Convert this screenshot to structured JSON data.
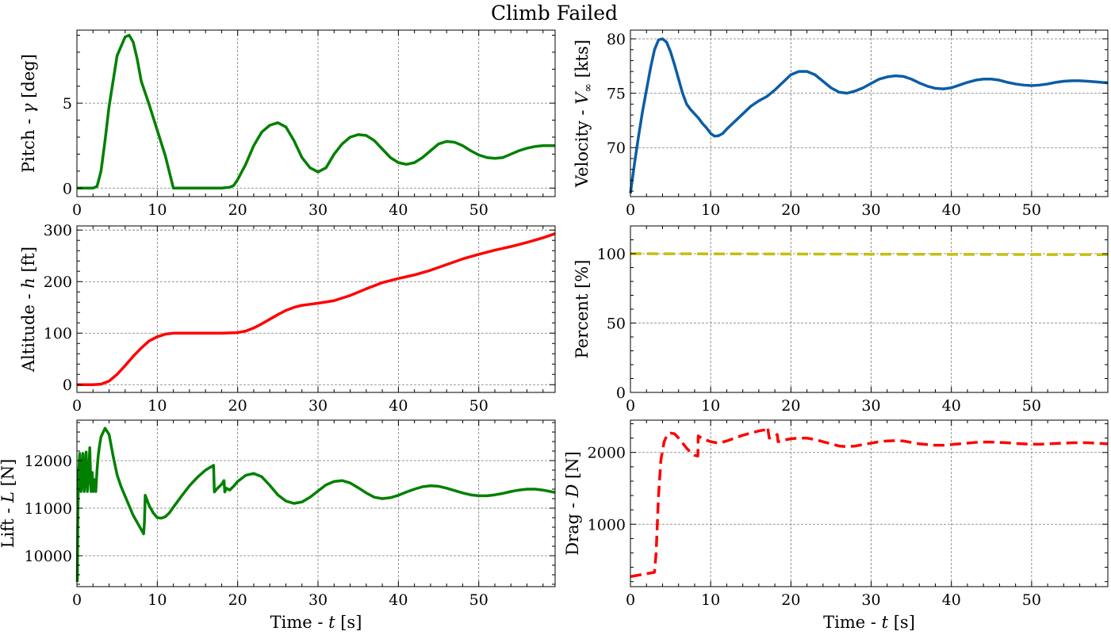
{
  "figure": {
    "title": "Climb Failed"
  },
  "chart_data": [
    {
      "id": "pitch",
      "type": "line",
      "ylabel_prefix": "Pitch - ",
      "ylabel_sym": "γ",
      "ylabel_unit": " [deg]",
      "xlabel": "",
      "xlim": [
        0,
        59.5
      ],
      "ylim": [
        -0.5,
        9.3
      ],
      "xticks": [
        "0",
        "10",
        "20",
        "30",
        "40",
        "50"
      ],
      "yticks": [
        "0",
        "5"
      ],
      "ytick_values": [
        0,
        5
      ],
      "series": [
        {
          "color": "#008000",
          "style": "solid",
          "x": [
            0,
            1,
            2,
            2.5,
            3,
            3.5,
            4,
            5,
            6,
            6.5,
            7,
            7.5,
            8,
            9,
            10,
            11,
            12,
            14,
            16,
            18,
            19,
            19.5,
            20,
            21,
            22,
            23,
            24,
            25,
            26,
            27,
            28,
            29,
            30,
            31,
            32,
            33,
            34,
            35,
            36,
            37,
            38,
            39,
            40,
            41,
            42,
            43,
            44,
            45,
            46,
            47,
            48,
            49,
            50,
            51,
            52,
            53,
            54,
            55,
            56,
            57,
            58,
            59.5
          ],
          "y": [
            0,
            0,
            0,
            0.1,
            1.0,
            2.8,
            4.8,
            7.8,
            8.9,
            9.0,
            8.6,
            7.6,
            6.3,
            4.9,
            3.4,
            1.9,
            0.0,
            0.0,
            0.0,
            0.0,
            0.05,
            0.15,
            0.5,
            1.4,
            2.5,
            3.3,
            3.7,
            3.85,
            3.6,
            2.8,
            1.8,
            1.2,
            0.95,
            1.2,
            2.0,
            2.6,
            3.0,
            3.15,
            3.1,
            2.8,
            2.3,
            1.8,
            1.5,
            1.4,
            1.5,
            1.8,
            2.2,
            2.6,
            2.75,
            2.7,
            2.5,
            2.2,
            1.95,
            1.8,
            1.75,
            1.8,
            2.0,
            2.2,
            2.35,
            2.45,
            2.5,
            2.5
          ]
        }
      ]
    },
    {
      "id": "velocity",
      "type": "line",
      "ylabel_prefix": "Velocity - ",
      "ylabel_sym": "V",
      "ylabel_sub": "∞",
      "ylabel_unit": " [kts]",
      "xlabel": "",
      "xlim": [
        0,
        59.5
      ],
      "ylim": [
        65.5,
        80.8
      ],
      "xticks": [
        "0",
        "10",
        "20",
        "30",
        "40",
        "50"
      ],
      "yticks": [
        "70",
        "75",
        "80"
      ],
      "ytick_values": [
        70,
        75,
        80
      ],
      "series": [
        {
          "color": "#0c5da5",
          "style": "solid",
          "x": [
            0,
            0.5,
            1,
            1.5,
            2,
            2.5,
            3,
            3.5,
            4,
            4.5,
            5,
            5.5,
            6,
            6.5,
            7,
            7.5,
            8,
            8.5,
            9,
            9.5,
            10,
            10.5,
            11,
            11.5,
            12,
            13,
            14,
            15,
            16,
            17,
            18,
            19,
            20,
            21,
            22,
            23,
            24,
            25,
            26,
            27,
            28,
            29,
            30,
            31,
            32,
            33,
            34,
            35,
            36,
            37,
            38,
            39,
            40,
            41,
            42,
            43,
            44,
            45,
            46,
            47,
            48,
            49,
            50,
            51,
            52,
            53,
            54,
            55,
            56,
            57,
            58,
            59.5
          ],
          "y": [
            65.8,
            68.5,
            71.0,
            73.3,
            75.3,
            77.3,
            79.0,
            79.9,
            80.0,
            79.7,
            78.8,
            77.6,
            76.3,
            75.0,
            74.0,
            73.5,
            73.1,
            72.7,
            72.2,
            71.8,
            71.3,
            71.05,
            71.1,
            71.3,
            71.7,
            72.4,
            73.1,
            73.8,
            74.3,
            74.7,
            75.3,
            76.0,
            76.7,
            77.0,
            77.0,
            76.7,
            76.1,
            75.5,
            75.1,
            75.0,
            75.2,
            75.5,
            75.9,
            76.3,
            76.5,
            76.6,
            76.55,
            76.3,
            75.95,
            75.65,
            75.45,
            75.4,
            75.5,
            75.75,
            76.0,
            76.2,
            76.3,
            76.3,
            76.2,
            76.0,
            75.85,
            75.75,
            75.7,
            75.75,
            75.85,
            76.0,
            76.1,
            76.15,
            76.15,
            76.1,
            76.05,
            75.95
          ]
        }
      ]
    },
    {
      "id": "altitude",
      "type": "line",
      "ylabel_prefix": "Altitude - ",
      "ylabel_sym": "h",
      "ylabel_unit": " [ft]",
      "xlabel": "",
      "xlim": [
        0,
        59.5
      ],
      "ylim": [
        -15,
        308
      ],
      "xticks": [
        "0",
        "10",
        "20",
        "30",
        "40",
        "50"
      ],
      "yticks": [
        "0",
        "100",
        "200",
        "300"
      ],
      "ytick_values": [
        0,
        100,
        200,
        300
      ],
      "series": [
        {
          "color": "#ff0000",
          "style": "solid",
          "x": [
            0,
            2,
            3,
            4,
            5,
            6,
            7,
            8,
            9,
            10,
            11,
            12,
            14,
            16,
            18,
            20,
            21,
            22,
            23,
            24,
            25,
            26,
            27,
            28,
            29,
            30,
            32,
            34,
            36,
            38,
            40,
            42,
            44,
            46,
            48,
            50,
            52,
            54,
            56,
            58,
            59.5
          ],
          "y": [
            0,
            0,
            1,
            7,
            20,
            37,
            55,
            71,
            85,
            93,
            98,
            100,
            100,
            100,
            100,
            101,
            104,
            110,
            118,
            127,
            136,
            144,
            150,
            154,
            156,
            158,
            163,
            173,
            186,
            198,
            206,
            213,
            222,
            233,
            244,
            253,
            261,
            268,
            276,
            285,
            293
          ]
        }
      ]
    },
    {
      "id": "percent",
      "type": "line",
      "ylabel_prefix": "Percent [%]",
      "ylabel_sym": "",
      "ylabel_unit": "",
      "xlabel": "",
      "xlim": [
        0,
        59.5
      ],
      "ylim": [
        0,
        120
      ],
      "xticks": [
        "0",
        "10",
        "20",
        "30",
        "40",
        "50"
      ],
      "yticks": [
        "0",
        "50",
        "100"
      ],
      "ytick_values": [
        0,
        50,
        100
      ],
      "series": [
        {
          "color": "#c5bf0e",
          "style": "dashed",
          "x": [
            0,
            59.5
          ],
          "y": [
            100,
            99.3
          ]
        }
      ]
    },
    {
      "id": "lift",
      "type": "line",
      "ylabel_prefix": "Lift - ",
      "ylabel_sym": "L",
      "ylabel_unit": " [N]",
      "xlabel_prefix": "Time - ",
      "xlabel_sym": "t",
      "xlabel_unit": " [s]",
      "xlim": [
        0,
        59.5
      ],
      "ylim": [
        9350,
        12850
      ],
      "xticks": [
        "0",
        "10",
        "20",
        "30",
        "40",
        "50"
      ],
      "yticks": [
        "10000",
        "11000",
        "12000"
      ],
      "ytick_values": [
        10000,
        11000,
        12000
      ],
      "series": [
        {
          "color": "#008000",
          "style": "solid",
          "x": [
            0.05,
            0.12,
            0.2,
            0.35,
            0.5,
            0.6,
            0.75,
            0.9,
            1.0,
            1.15,
            1.3,
            1.45,
            1.6,
            1.75,
            1.9,
            2.05,
            2.2,
            2.35,
            2.5,
            2.65,
            2.8,
            3.0,
            3.5,
            4.0,
            4.5,
            5.0,
            5.5,
            6.0,
            6.5,
            7.0,
            7.5,
            8.0,
            8.3,
            8.4,
            8.5,
            9.0,
            9.5,
            10,
            10.5,
            11,
            11.5,
            12,
            13,
            14,
            15,
            16,
            17,
            17.1,
            17.5,
            18.0,
            18.3,
            18.4,
            18.6,
            19,
            19.5,
            20,
            21,
            22,
            23,
            24,
            25,
            26,
            27,
            28,
            29,
            30,
            31,
            32,
            33,
            34,
            35,
            36,
            37,
            38,
            39,
            40,
            41,
            42,
            43,
            44,
            45,
            46,
            47,
            48,
            49,
            50,
            51,
            52,
            53,
            54,
            55,
            56,
            57,
            58,
            59.5
          ],
          "y": [
            9450,
            10900,
            11700,
            12150,
            11350,
            11500,
            12150,
            11350,
            11600,
            12180,
            11350,
            11700,
            12270,
            11350,
            11750,
            11350,
            11600,
            11350,
            11800,
            12100,
            12300,
            12500,
            12680,
            12550,
            12100,
            11700,
            11450,
            11250,
            11050,
            10850,
            10700,
            10550,
            10460,
            10700,
            11270,
            11050,
            10900,
            10800,
            10790,
            10820,
            10900,
            11020,
            11250,
            11470,
            11650,
            11800,
            11900,
            11340,
            11420,
            11500,
            11580,
            11340,
            11420,
            11380,
            11460,
            11560,
            11690,
            11730,
            11660,
            11480,
            11280,
            11150,
            11100,
            11130,
            11230,
            11360,
            11490,
            11560,
            11580,
            11530,
            11430,
            11320,
            11230,
            11200,
            11220,
            11270,
            11340,
            11400,
            11450,
            11470,
            11460,
            11420,
            11370,
            11320,
            11280,
            11260,
            11260,
            11280,
            11310,
            11350,
            11380,
            11400,
            11400,
            11380,
            11330
          ]
        }
      ]
    },
    {
      "id": "drag",
      "type": "line",
      "ylabel_prefix": "Drag - ",
      "ylabel_sym": "D",
      "ylabel_unit": " [N]",
      "xlabel_prefix": "Time - ",
      "xlabel_sym": "t",
      "xlabel_unit": " [s]",
      "xlim": [
        0,
        59.5
      ],
      "ylim": [
        130,
        2450
      ],
      "xticks": [
        "0",
        "10",
        "20",
        "30",
        "40",
        "50"
      ],
      "yticks": [
        "1000",
        "2000"
      ],
      "ytick_values": [
        1000,
        2000
      ],
      "series": [
        {
          "color": "#ff0000",
          "style": "dashed",
          "x": [
            0,
            1,
            2,
            3,
            3.2,
            3.5,
            3.8,
            4.2,
            4.6,
            5,
            5.5,
            6,
            6.5,
            7,
            7.5,
            8,
            8.4,
            8.45,
            9,
            10,
            11,
            12,
            13,
            14,
            15,
            16,
            17,
            17.1,
            17.3,
            18,
            18.3,
            18.4,
            19,
            20,
            21,
            22,
            23,
            24,
            25,
            26,
            27,
            28,
            29,
            30,
            31,
            32,
            33,
            34,
            35,
            36,
            37,
            38,
            39,
            40,
            41,
            42,
            43,
            44,
            45,
            46,
            47,
            48,
            49,
            50,
            51,
            52,
            53,
            54,
            55,
            56,
            57,
            58,
            59.5
          ],
          "y": [
            270,
            290,
            310,
            330,
            600,
            1400,
            1900,
            2150,
            2250,
            2270,
            2260,
            2200,
            2130,
            2060,
            2000,
            1960,
            1950,
            2230,
            2190,
            2150,
            2130,
            2160,
            2200,
            2240,
            2270,
            2300,
            2320,
            2350,
            2200,
            2220,
            2250,
            2150,
            2170,
            2190,
            2200,
            2200,
            2180,
            2150,
            2120,
            2090,
            2080,
            2090,
            2110,
            2130,
            2150,
            2160,
            2165,
            2160,
            2140,
            2120,
            2110,
            2100,
            2100,
            2110,
            2120,
            2130,
            2140,
            2145,
            2145,
            2140,
            2135,
            2125,
            2120,
            2115,
            2115,
            2120,
            2125,
            2130,
            2135,
            2135,
            2135,
            2130,
            2120
          ]
        }
      ]
    }
  ]
}
